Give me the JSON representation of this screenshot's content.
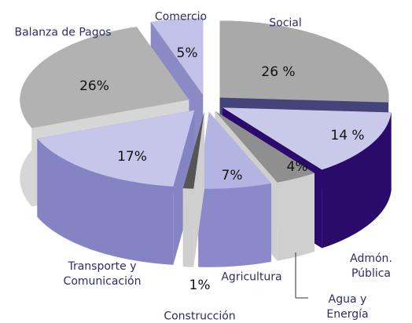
{
  "chart_data": {
    "type": "pie",
    "categories": [
      "Social",
      "Admón.\nPública",
      "Agua y Energía",
      "Agricultura",
      "Construcción",
      "Transporte y\nComunicación",
      "Balanza de Pagos",
      "Comercio"
    ],
    "values": [
      26,
      14,
      4,
      7,
      1,
      17,
      26,
      5
    ],
    "value_labels": [
      "26 %",
      "14 %",
      "4%",
      "7%",
      "1%",
      "17%",
      "26%",
      "5%"
    ],
    "colors": [
      "#a9a9a9",
      "#c9c9ea",
      "#8f8f8f",
      "#b4b4e2",
      "#555555",
      "#c6c6ea",
      "#b2b2b2",
      "#c2c2e8"
    ],
    "side_colors": [
      "#44447a",
      "#2a0a6a",
      "#cfcfcf",
      "#8a8acb",
      "#cfcfcf",
      "#8484c4",
      "#d6d6d6",
      "#8a8ac4"
    ]
  }
}
